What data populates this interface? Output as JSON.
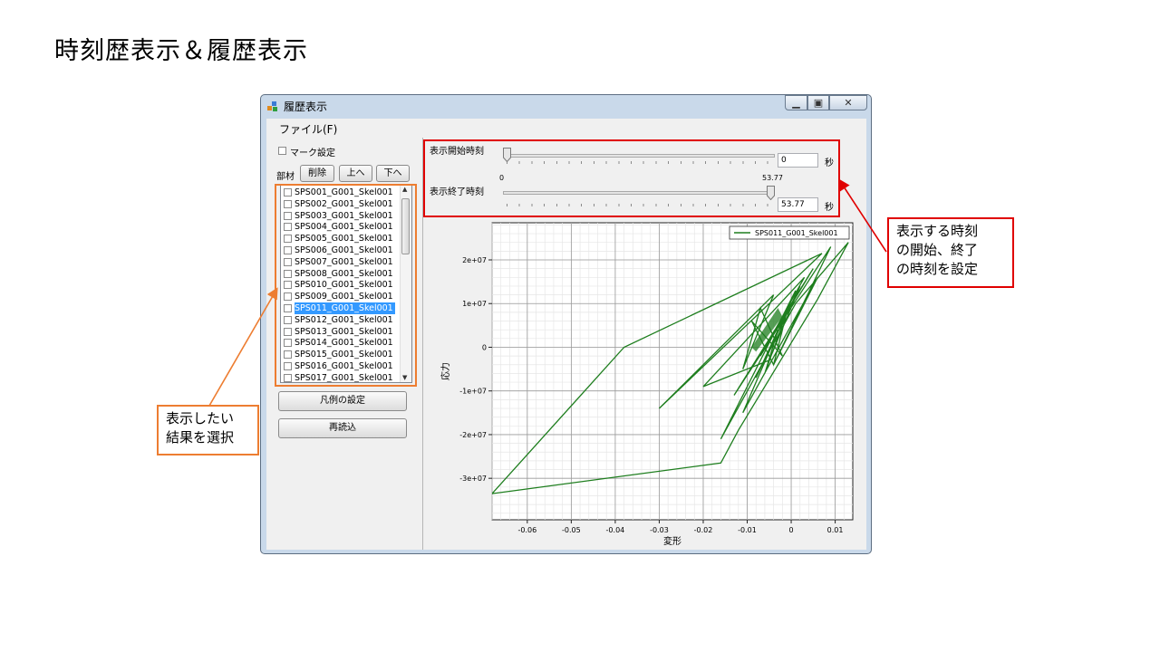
{
  "slide": {
    "title": "時刻歴表示＆履歴表示"
  },
  "window": {
    "title": "履歴表示",
    "menu_file": "ファイル(F)"
  },
  "left": {
    "mark_setting_label": "マーク設定",
    "member_label": "部材",
    "delete_label": "削除",
    "up_label": "上へ",
    "down_label": "下へ",
    "items": [
      "SPS001_G001_Skel001",
      "SPS002_G001_Skel001",
      "SPS003_G001_Skel001",
      "SPS004_G001_Skel001",
      "SPS005_G001_Skel001",
      "SPS006_G001_Skel001",
      "SPS007_G001_Skel001",
      "SPS008_G001_Skel001",
      "SPS010_G001_Skel001",
      "SPS009_G001_Skel001",
      "SPS011_G001_Skel001",
      "SPS012_G001_Skel001",
      "SPS013_G001_Skel001",
      "SPS014_G001_Skel001",
      "SPS015_G001_Skel001",
      "SPS016_G001_Skel001",
      "SPS017_G001_Skel001"
    ],
    "selected_item": "SPS011_G001_Skel001",
    "legend_setting_label": "凡例の設定",
    "reload_label": "再読込"
  },
  "time": {
    "start_label": "表示開始時刻",
    "end_label": "表示終了時刻",
    "start_value": "0",
    "end_value": "53.77",
    "unit": "秒",
    "range_min": "0",
    "range_max": "53.77",
    "start_fraction": 0,
    "end_fraction": 1
  },
  "chart_data": {
    "type": "line",
    "xlabel": "変形",
    "ylabel": "応力",
    "xlim": [
      -0.068,
      0.014
    ],
    "ylim": [
      -39500000.0,
      28500000.0
    ],
    "xticks": [
      "-0.06",
      "-0.05",
      "-0.04",
      "-0.03",
      "-0.02",
      "-0.01",
      "0",
      "0.01"
    ],
    "yticks": [
      "2e+07",
      "1e+07",
      "0",
      "-1e+07",
      "-2e+07",
      "-3e+07"
    ],
    "grid": true,
    "legend_position": "top-right",
    "series": [
      {
        "name": "SPS011_G001_Skel001",
        "color": "#1e7e1e",
        "x": [
          -0.068,
          -0.038,
          0.007,
          -0.03,
          -0.004,
          -0.011,
          -0.007,
          -0.002,
          -0.009,
          -0.004,
          -0.001,
          -0.006,
          -0.003,
          -0.008,
          0.002,
          -0.005,
          -0.02,
          0.003,
          -0.007,
          0.005,
          -0.013,
          0.009,
          -0.004,
          0.006,
          -0.011,
          0.001,
          -0.016,
          0.001,
          0.013,
          0.006,
          -0.012,
          -0.016,
          -0.068
        ],
        "y": [
          -33500000.0,
          0,
          21500000.0,
          -14000000.0,
          12000000.0,
          -5000000.0,
          9000000.0,
          -2000000.0,
          6000000.0,
          -4000000.0,
          8000000.0,
          -6000000.0,
          4000000.0,
          -7000000.0,
          14000000.0,
          -3000000.0,
          -9000000.0,
          16000000.0,
          -2000000.0,
          18000000.0,
          -11000000.0,
          23000000.0,
          -4000000.0,
          16000000.0,
          -15000000.0,
          13000000.0,
          -21000000.0,
          10000000.0,
          24000000.0,
          11000000.0,
          -19000000.0,
          -26500000.0,
          -33500000.0
        ]
      }
    ]
  },
  "callouts": {
    "right_text": [
      "表示する時刻",
      "の開始、終了",
      "の時刻を設定"
    ],
    "left_text": [
      "表示したい",
      "結果を選択"
    ]
  },
  "colors": {
    "callout_red": "#e00000",
    "callout_orange": "#ed7d31",
    "selection": "#3399ff",
    "series_green": "#1e7e1e"
  }
}
